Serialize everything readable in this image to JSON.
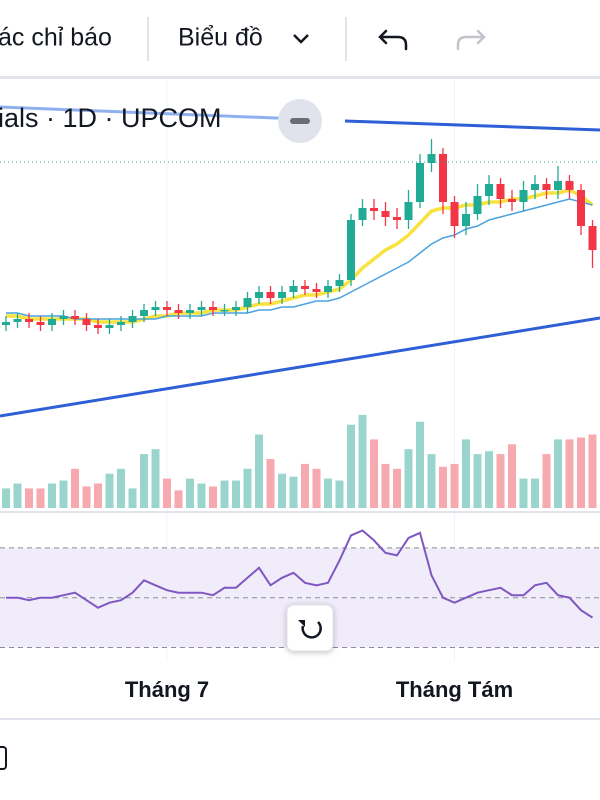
{
  "toolbar": {
    "indicators": "ác chỉ báo",
    "chart_type": "Biểu đồ"
  },
  "chart_data": {
    "type": "candlestick",
    "legend_title": "ials · 1D · UPCOM",
    "categories": [
      null,
      null,
      null,
      null,
      null,
      null,
      null,
      null,
      null,
      null,
      null,
      null,
      null,
      null,
      "Tháng 7",
      null,
      null,
      null,
      null,
      null,
      null,
      null,
      null,
      null,
      null,
      null,
      null,
      null,
      null,
      null,
      null,
      null,
      null,
      null,
      null,
      null,
      null,
      null,
      null,
      "Tháng Tám",
      null,
      null,
      null,
      null,
      null,
      null,
      null,
      null,
      null,
      null,
      null,
      null
    ],
    "open": [
      25,
      26,
      27,
      26,
      25,
      27,
      28,
      27,
      25,
      24,
      25,
      26,
      28,
      30,
      31,
      30,
      29,
      30,
      31,
      30,
      30,
      31,
      34,
      36,
      34,
      36,
      38,
      37,
      36,
      38,
      40,
      60,
      64,
      63,
      61,
      60,
      66,
      79,
      82,
      66,
      58,
      62,
      68,
      72,
      67,
      66,
      70,
      72,
      70,
      73,
      70,
      58
    ],
    "high": [
      28,
      29,
      29,
      28,
      29,
      30,
      30,
      29,
      27,
      27,
      28,
      30,
      32,
      33,
      33,
      32,
      32,
      33,
      33,
      32,
      33,
      36,
      38,
      38,
      38,
      40,
      40,
      39,
      40,
      42,
      62,
      67,
      67,
      66,
      64,
      70,
      82,
      87,
      84,
      68,
      66,
      72,
      75,
      74,
      70,
      73,
      75,
      74,
      78,
      75,
      72,
      60
    ],
    "low": [
      23,
      24,
      24,
      23,
      23,
      25,
      25,
      23,
      22,
      22,
      23,
      24,
      26,
      28,
      28,
      27,
      27,
      28,
      28,
      28,
      28,
      29,
      32,
      32,
      32,
      34,
      35,
      34,
      34,
      36,
      38,
      58,
      60,
      58,
      57,
      57,
      64,
      76,
      62,
      54,
      55,
      60,
      65,
      64,
      63,
      63,
      67,
      67,
      67,
      67,
      55,
      44
    ],
    "close": [
      26,
      27,
      26,
      25,
      27,
      28,
      27,
      25,
      24,
      25,
      26,
      28,
      30,
      31,
      30,
      29,
      30,
      31,
      30,
      30,
      31,
      34,
      36,
      34,
      36,
      38,
      37,
      36,
      38,
      40,
      60,
      64,
      63,
      61,
      60,
      66,
      79,
      82,
      66,
      58,
      62,
      68,
      72,
      67,
      66,
      70,
      72,
      70,
      73,
      70,
      58,
      50
    ],
    "ylim": [
      0,
      100
    ],
    "up_color": "#22ab94",
    "down_color": "#f23645",
    "moving_averages": [
      {
        "color": "#f7e23f",
        "values": [
          28,
          28,
          27,
          27,
          27,
          27,
          27,
          27,
          26,
          26,
          26,
          26,
          27,
          28,
          28,
          29,
          29,
          29,
          30,
          30,
          30,
          31,
          32,
          32,
          33,
          34,
          35,
          35,
          36,
          37,
          40,
          44,
          47,
          50,
          52,
          55,
          59,
          63,
          64,
          64,
          65,
          65,
          66,
          66,
          67,
          67,
          68,
          69,
          69,
          70,
          68,
          65
        ]
      },
      {
        "color": "#4aa3df",
        "values": [
          29,
          29,
          28,
          28,
          28,
          28,
          27,
          27,
          27,
          27,
          27,
          27,
          27,
          27,
          28,
          28,
          28,
          28,
          29,
          29,
          29,
          29,
          30,
          30,
          31,
          31,
          32,
          33,
          33,
          34,
          36,
          38,
          40,
          42,
          44,
          46,
          49,
          52,
          54,
          55,
          57,
          58,
          60,
          61,
          62,
          63,
          64,
          65,
          66,
          67,
          66,
          65
        ]
      }
    ],
    "volume": {
      "ylim": [
        0,
        100
      ],
      "up_color": "#99d5cc",
      "down_color": "#f7a9b0",
      "values": [
        20,
        25,
        20,
        20,
        25,
        28,
        40,
        22,
        25,
        35,
        40,
        20,
        55,
        60,
        30,
        18,
        30,
        25,
        22,
        28,
        28,
        40,
        75,
        50,
        35,
        32,
        45,
        40,
        30,
        28,
        85,
        95,
        70,
        45,
        40,
        60,
        88,
        55,
        42,
        45,
        70,
        55,
        58,
        55,
        65,
        30,
        30,
        55,
        70,
        70,
        72,
        75
      ]
    },
    "rsi": {
      "ylim": [
        25,
        82
      ],
      "yticks": [
        30,
        50,
        70
      ],
      "color": "#7e57c2",
      "band_color": "#f1ecfa",
      "values": [
        50,
        50,
        49,
        50,
        50,
        51,
        52,
        49,
        46,
        48,
        49,
        52,
        57,
        55,
        53,
        52,
        52,
        52,
        51,
        54,
        54,
        58,
        62,
        55,
        58,
        60,
        56,
        55,
        56,
        65,
        75,
        77,
        73,
        68,
        67,
        74,
        76,
        59,
        50,
        48,
        50,
        52,
        53,
        54,
        51,
        51,
        55,
        56,
        51,
        50,
        45,
        42
      ]
    }
  }
}
